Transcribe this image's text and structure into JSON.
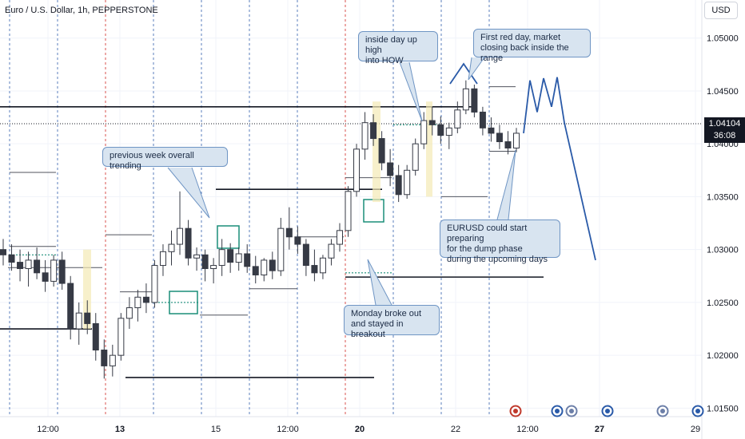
{
  "header": {
    "title": "Euro / U.S. Dollar, 1h, PEPPERSTONE",
    "currency": "USD"
  },
  "last_price": {
    "value": "1.04104",
    "countdown": "36:08"
  },
  "annotations": {
    "previous_week": "previous week overall trending",
    "inside_day": "inside day up high\ninto HOW",
    "first_red": "First red day, market\nclosing back inside the range",
    "eurusd_dump": "EURUSD could start preparing\nfor the dump phase\nduring the upcoming days",
    "monday": "Monday broke out\nand stayed in breakout"
  },
  "chart_data": {
    "type": "candlestick",
    "symbol": "Euro / U.S. Dollar",
    "interval": "1h",
    "source": "PEPPERSTONE",
    "y_ticks": [
      1.05,
      1.045,
      1.04,
      1.035,
      1.03,
      1.025,
      1.02,
      1.015
    ],
    "y_tick_labels": [
      "1.05000",
      "1.04500",
      "1.04000",
      "1.03500",
      "1.03000",
      "1.02500",
      "1.02000",
      "1.01500"
    ],
    "ylim": [
      1.0142,
      1.0536
    ],
    "x_tick_labels": [
      {
        "label": "12:00",
        "bold": false
      },
      {
        "label": "13",
        "bold": true
      },
      {
        "label": "15",
        "bold": false
      },
      {
        "label": "12:00",
        "bold": false
      },
      {
        "label": "20",
        "bold": true
      },
      {
        "label": "22",
        "bold": false
      },
      {
        "label": "12:00",
        "bold": false
      },
      {
        "label": "27",
        "bold": true
      },
      {
        "label": "29",
        "bold": false
      }
    ],
    "key_levels": [
      {
        "price": 1.0435,
        "style": "solid"
      },
      {
        "price": 1.0357,
        "style": "solid"
      },
      {
        "price": 1.0274,
        "style": "solid"
      },
      {
        "price": 1.0225,
        "style": "solid"
      },
      {
        "price": 1.0179,
        "style": "solid"
      }
    ],
    "ohlc_path": [
      [
        1.03,
        1.031,
        1.0285,
        1.0295
      ],
      [
        1.0295,
        1.0305,
        1.028,
        1.0288
      ],
      [
        1.0288,
        1.03,
        1.027,
        1.0282
      ],
      [
        1.0282,
        1.0298,
        1.0265,
        1.029
      ],
      [
        1.029,
        1.0302,
        1.0272,
        1.0278
      ],
      [
        1.0278,
        1.029,
        1.026,
        1.027
      ],
      [
        1.027,
        1.0295,
        1.0265,
        1.029
      ],
      [
        1.029,
        1.0298,
        1.0262,
        1.0268
      ],
      [
        1.0268,
        1.0275,
        1.0215,
        1.0225
      ],
      [
        1.0225,
        1.025,
        1.021,
        1.024
      ],
      [
        1.024,
        1.0252,
        1.022,
        1.023
      ],
      [
        1.023,
        1.024,
        1.0195,
        1.0205
      ],
      [
        1.0205,
        1.0215,
        1.0178,
        1.019
      ],
      [
        1.019,
        1.021,
        1.018,
        1.02
      ],
      [
        1.02,
        1.024,
        1.0195,
        1.0235
      ],
      [
        1.0235,
        1.0255,
        1.0225,
        1.0245
      ],
      [
        1.0245,
        1.0262,
        1.0232,
        1.0255
      ],
      [
        1.0255,
        1.0268,
        1.024,
        1.025
      ],
      [
        1.025,
        1.029,
        1.0245,
        1.0285
      ],
      [
        1.0285,
        1.0305,
        1.0275,
        1.0298
      ],
      [
        1.0298,
        1.0318,
        1.0285,
        1.0305
      ],
      [
        1.0305,
        1.0355,
        1.0295,
        1.032
      ],
      [
        1.032,
        1.0328,
        1.0285,
        1.0292
      ],
      [
        1.0292,
        1.0302,
        1.028,
        1.0295
      ],
      [
        1.0295,
        1.03,
        1.027,
        1.0282
      ],
      [
        1.0282,
        1.0292,
        1.0268,
        1.0285
      ],
      [
        1.0285,
        1.031,
        1.0275,
        1.03
      ],
      [
        1.03,
        1.0306,
        1.0278,
        1.0288
      ],
      [
        1.0288,
        1.0302,
        1.028,
        1.0296
      ],
      [
        1.0296,
        1.0305,
        1.0278,
        1.0284
      ],
      [
        1.0284,
        1.0294,
        1.0268,
        1.0276
      ],
      [
        1.0276,
        1.0292,
        1.027,
        1.029
      ],
      [
        1.029,
        1.0298,
        1.0272,
        1.028
      ],
      [
        1.028,
        1.033,
        1.0275,
        1.032
      ],
      [
        1.032,
        1.034,
        1.03,
        1.0312
      ],
      [
        1.0312,
        1.0322,
        1.0296,
        1.0305
      ],
      [
        1.0305,
        1.031,
        1.0275,
        1.0285
      ],
      [
        1.0285,
        1.03,
        1.027,
        1.0278
      ],
      [
        1.0278,
        1.0295,
        1.0272,
        1.0292
      ],
      [
        1.0292,
        1.031,
        1.0285,
        1.0305
      ],
      [
        1.0305,
        1.0325,
        1.0298,
        1.0318
      ],
      [
        1.0318,
        1.036,
        1.0312,
        1.0355
      ],
      [
        1.0355,
        1.04,
        1.035,
        1.0395
      ],
      [
        1.0395,
        1.043,
        1.0385,
        1.042
      ],
      [
        1.042,
        1.0428,
        1.0398,
        1.0405
      ],
      [
        1.0405,
        1.0412,
        1.0375,
        1.0382
      ],
      [
        1.0382,
        1.0395,
        1.036,
        1.037
      ],
      [
        1.037,
        1.038,
        1.0345,
        1.0352
      ],
      [
        1.0352,
        1.038,
        1.0348,
        1.0375
      ],
      [
        1.0375,
        1.0405,
        1.037,
        1.04
      ],
      [
        1.04,
        1.043,
        1.0395,
        1.0422
      ],
      [
        1.0422,
        1.0435,
        1.0408,
        1.0418
      ],
      [
        1.0418,
        1.0426,
        1.04,
        1.0408
      ],
      [
        1.0408,
        1.042,
        1.0395,
        1.0415
      ],
      [
        1.0415,
        1.044,
        1.041,
        1.0432
      ],
      [
        1.0432,
        1.046,
        1.0428,
        1.0452
      ],
      [
        1.0452,
        1.0456,
        1.0425,
        1.043
      ],
      [
        1.043,
        1.0435,
        1.0408,
        1.0415
      ],
      [
        1.0415,
        1.0425,
        1.0402,
        1.041
      ],
      [
        1.041,
        1.0418,
        1.0395,
        1.0402
      ],
      [
        1.0402,
        1.0412,
        1.039,
        1.0396
      ],
      [
        1.0396,
        1.0415,
        1.0392,
        1.041
      ]
    ],
    "projection": [
      1.041,
      1.046,
      1.043,
      1.0462,
      1.0435,
      1.0463,
      1.042,
      1.029
    ]
  }
}
